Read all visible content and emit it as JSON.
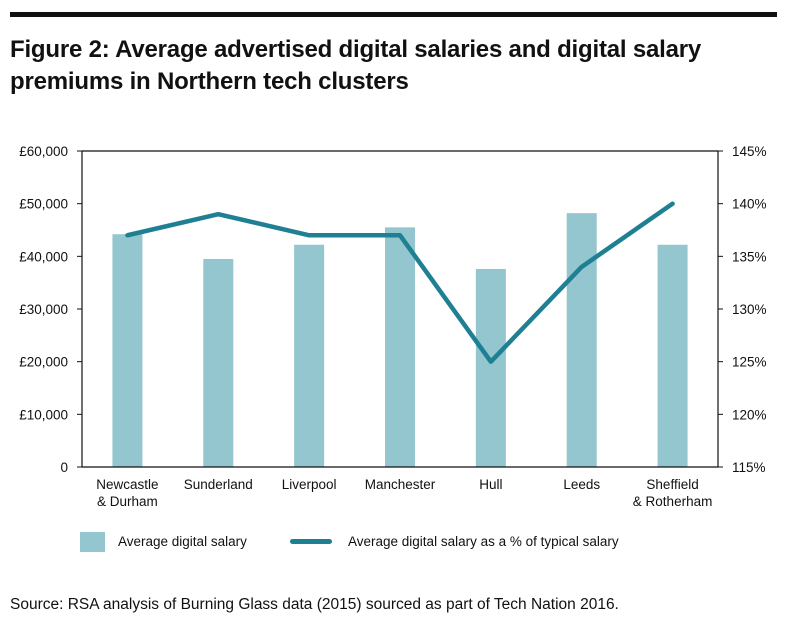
{
  "title_lines": [
    "Figure 2: Average advertised digital salaries and digital salary",
    "premiums in Northern tech clusters"
  ],
  "source": "Source: RSA analysis of Burning Glass data (2015) sourced as part of Tech Nation 2016.",
  "colors": {
    "bar": "#93c6ce",
    "line": "#1f7f93",
    "axis": "#111111"
  },
  "chart_data": {
    "type": "bar",
    "categories": [
      [
        "Newcastle",
        "& Durham"
      ],
      [
        "Sunderland"
      ],
      [
        "Liverpool"
      ],
      [
        "Manchester"
      ],
      [
        "Hull"
      ],
      [
        "Leeds"
      ],
      [
        "Sheffield",
        "& Rotherham"
      ]
    ],
    "series": [
      {
        "name": "Average digital salary",
        "type": "bar",
        "axis": "left",
        "values": [
          44200,
          39500,
          42200,
          45500,
          37600,
          48200,
          42200
        ]
      },
      {
        "name": "Average digital salary as a % of typical salary",
        "type": "line",
        "axis": "right",
        "values": [
          137,
          139,
          137,
          137,
          125,
          134,
          140
        ]
      }
    ],
    "y_left": {
      "min": 0,
      "max": 60000,
      "ticks": [
        0,
        10000,
        20000,
        30000,
        40000,
        50000,
        60000
      ],
      "tick_labels": [
        "0",
        "£10,000",
        "£20,000",
        "£30,000",
        "£40,000",
        "£50,000",
        "£60,000"
      ]
    },
    "y_right": {
      "min": 115,
      "max": 145,
      "ticks": [
        115,
        120,
        125,
        130,
        135,
        140,
        145
      ],
      "tick_labels": [
        "115%",
        "120%",
        "125%",
        "130%",
        "135%",
        "140%",
        "145%"
      ]
    },
    "grid": false,
    "legend_placement": "bottom"
  }
}
